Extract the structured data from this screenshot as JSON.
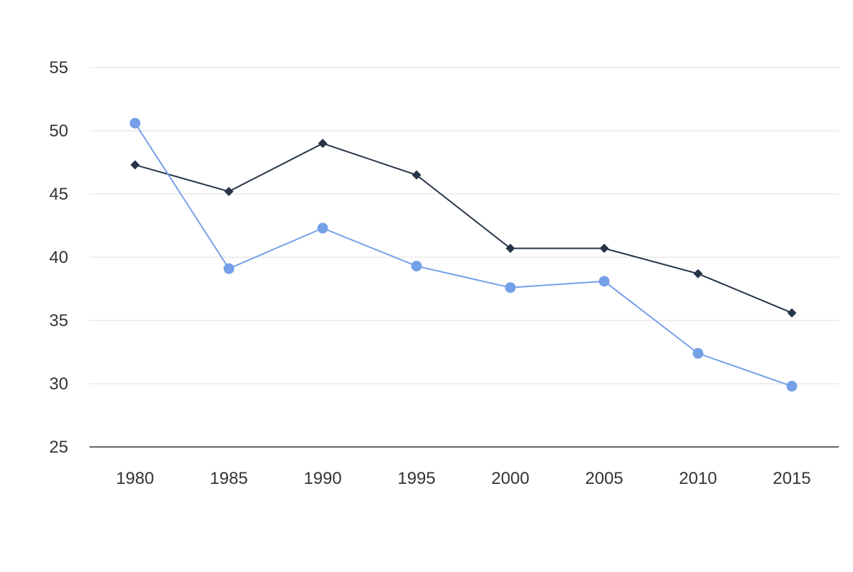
{
  "chart_data": {
    "type": "line",
    "title": "",
    "xlabel": "",
    "ylabel": "",
    "categories": [
      "1980",
      "1985",
      "1990",
      "1995",
      "2000",
      "2005",
      "2010",
      "2015"
    ],
    "y_ticks": [
      "25",
      "30",
      "35",
      "40",
      "45",
      "50",
      "55"
    ],
    "ylim": [
      25,
      55
    ],
    "grid": true,
    "legend": "none",
    "series": [
      {
        "color": "#253447",
        "marker": "diamond",
        "values": [
          47.3,
          45.2,
          49.0,
          46.5,
          40.7,
          40.7,
          38.7,
          35.6
        ]
      },
      {
        "color": "#75a0e8",
        "marker": "circle",
        "values": [
          50.6,
          39.1,
          42.3,
          39.3,
          37.6,
          38.1,
          32.4,
          29.8
        ]
      }
    ]
  }
}
